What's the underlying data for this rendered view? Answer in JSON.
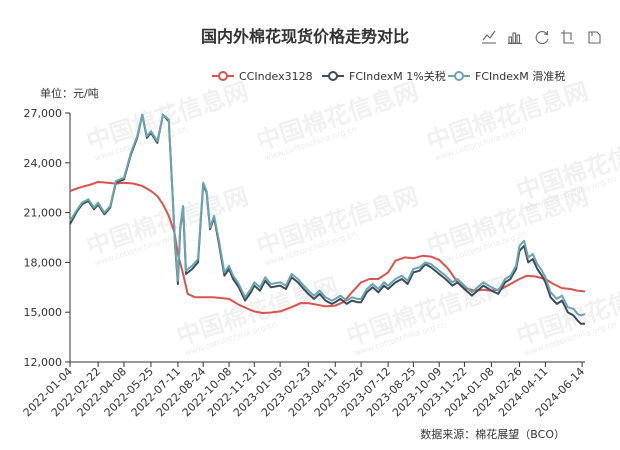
{
  "chart_data": {
    "type": "line",
    "title": "国内外棉花现货价格走势对比",
    "unit_label": "单位：元/吨",
    "source": "数据来源：棉花展望（BCO）",
    "watermark": "中国棉花信息网",
    "watermark_sub": "www.cottonchina.org.cn",
    "legend_position": "top-right",
    "grid": false,
    "y_axis": {
      "min": 12000,
      "max": 27000,
      "ticks": [
        12000,
        15000,
        18000,
        21000,
        24000,
        27000
      ],
      "tick_labels": [
        "12,000",
        "15,000",
        "18,000",
        "21,000",
        "24,000",
        "27,000"
      ]
    },
    "x_axis": {
      "start": "2022-01-04",
      "end": "2024-06-19",
      "tick_labels": [
        "2022-01-04",
        "2022-02-22",
        "2022-04-08",
        "2022-05-25",
        "2022-07-11",
        "2022-08-24",
        "2022-10-08",
        "2022-11-21",
        "2023-01-05",
        "2023-02-23",
        "2023-04-11",
        "2023-05-26",
        "2023-07-12",
        "2023-08-25",
        "2023-10-09",
        "2023-11-22",
        "2024-01-08",
        "2024-02-26",
        "2024-04-11",
        "2024-06-14"
      ]
    },
    "series": [
      {
        "name": "CCIndex3128",
        "color": "#d9534f",
        "points": [
          [
            "2022-01-04",
            22300
          ],
          [
            "2022-01-20",
            22500
          ],
          [
            "2022-02-10",
            22700
          ],
          [
            "2022-02-22",
            22850
          ],
          [
            "2022-03-10",
            22800
          ],
          [
            "2022-03-25",
            22750
          ],
          [
            "2022-04-08",
            22800
          ],
          [
            "2022-04-25",
            22750
          ],
          [
            "2022-05-10",
            22600
          ],
          [
            "2022-05-25",
            22300
          ],
          [
            "2022-06-05",
            22000
          ],
          [
            "2022-06-15",
            21500
          ],
          [
            "2022-06-25",
            20800
          ],
          [
            "2022-07-05",
            19800
          ],
          [
            "2022-07-11",
            18500
          ],
          [
            "2022-07-20",
            17300
          ],
          [
            "2022-07-28",
            16100
          ],
          [
            "2022-08-10",
            15900
          ],
          [
            "2022-08-24",
            15900
          ],
          [
            "2022-09-10",
            15900
          ],
          [
            "2022-09-25",
            15850
          ],
          [
            "2022-10-08",
            15800
          ],
          [
            "2022-10-25",
            15450
          ],
          [
            "2022-11-10",
            15200
          ],
          [
            "2022-11-21",
            15050
          ],
          [
            "2022-12-05",
            14950
          ],
          [
            "2022-12-20",
            14980
          ],
          [
            "2023-01-05",
            15050
          ],
          [
            "2023-01-25",
            15300
          ],
          [
            "2023-02-10",
            15550
          ],
          [
            "2023-02-23",
            15550
          ],
          [
            "2023-03-10",
            15450
          ],
          [
            "2023-03-25",
            15350
          ],
          [
            "2023-04-11",
            15400
          ],
          [
            "2023-04-25",
            15600
          ],
          [
            "2023-05-10",
            16200
          ],
          [
            "2023-05-26",
            16800
          ],
          [
            "2023-06-10",
            17000
          ],
          [
            "2023-06-25",
            17000
          ],
          [
            "2023-07-12",
            17400
          ],
          [
            "2023-07-25",
            18100
          ],
          [
            "2023-08-10",
            18300
          ],
          [
            "2023-08-25",
            18250
          ],
          [
            "2023-09-10",
            18400
          ],
          [
            "2023-09-25",
            18350
          ],
          [
            "2023-10-09",
            18150
          ],
          [
            "2023-10-25",
            17600
          ],
          [
            "2023-11-10",
            16800
          ],
          [
            "2023-11-22",
            16450
          ],
          [
            "2023-12-10",
            16300
          ],
          [
            "2023-12-25",
            16350
          ],
          [
            "2024-01-08",
            16300
          ],
          [
            "2024-01-25",
            16400
          ],
          [
            "2024-02-10",
            16700
          ],
          [
            "2024-02-26",
            17000
          ],
          [
            "2024-03-10",
            17200
          ],
          [
            "2024-03-25",
            17150
          ],
          [
            "2024-04-11",
            17000
          ],
          [
            "2024-04-25",
            16700
          ],
          [
            "2024-05-10",
            16450
          ],
          [
            "2024-05-25",
            16400
          ],
          [
            "2024-06-05",
            16300
          ],
          [
            "2024-06-19",
            16250
          ]
        ]
      },
      {
        "name": "FCIndexM 1%关税",
        "color": "#3f4b5a",
        "points": [
          [
            "2022-01-04",
            20300
          ],
          [
            "2022-01-15",
            21000
          ],
          [
            "2022-01-25",
            21500
          ],
          [
            "2022-02-05",
            21700
          ],
          [
            "2022-02-15",
            21200
          ],
          [
            "2022-02-22",
            21500
          ],
          [
            "2022-03-05",
            20900
          ],
          [
            "2022-03-15",
            21300
          ],
          [
            "2022-03-25",
            22800
          ],
          [
            "2022-04-08",
            23000
          ],
          [
            "2022-04-20",
            24500
          ],
          [
            "2022-05-01",
            25500
          ],
          [
            "2022-05-10",
            26900
          ],
          [
            "2022-05-18",
            25500
          ],
          [
            "2022-05-25",
            25800
          ],
          [
            "2022-06-05",
            25200
          ],
          [
            "2022-06-15",
            26900
          ],
          [
            "2022-06-25",
            26500
          ],
          [
            "2022-07-01",
            22500
          ],
          [
            "2022-07-06",
            19000
          ],
          [
            "2022-07-11",
            16700
          ],
          [
            "2022-07-15",
            20000
          ],
          [
            "2022-07-20",
            21300
          ],
          [
            "2022-07-25",
            17300
          ],
          [
            "2022-08-05",
            17600
          ],
          [
            "2022-08-15",
            18000
          ],
          [
            "2022-08-24",
            22700
          ],
          [
            "2022-08-30",
            22200
          ],
          [
            "2022-09-05",
            20000
          ],
          [
            "2022-09-12",
            20700
          ],
          [
            "2022-09-20",
            19200
          ],
          [
            "2022-09-30",
            17200
          ],
          [
            "2022-10-08",
            17600
          ],
          [
            "2022-10-15",
            17000
          ],
          [
            "2022-10-25",
            16500
          ],
          [
            "2022-11-05",
            15700
          ],
          [
            "2022-11-15",
            16200
          ],
          [
            "2022-11-21",
            16600
          ],
          [
            "2022-12-01",
            16300
          ],
          [
            "2022-12-10",
            16900
          ],
          [
            "2022-12-20",
            16500
          ],
          [
            "2023-01-05",
            16600
          ],
          [
            "2023-01-15",
            16400
          ],
          [
            "2023-01-25",
            17100
          ],
          [
            "2023-02-05",
            16800
          ],
          [
            "2023-02-15",
            16400
          ],
          [
            "2023-02-23",
            16100
          ],
          [
            "2023-03-05",
            15800
          ],
          [
            "2023-03-15",
            16100
          ],
          [
            "2023-03-25",
            15700
          ],
          [
            "2023-04-05",
            15500
          ],
          [
            "2023-04-11",
            15600
          ],
          [
            "2023-04-20",
            15800
          ],
          [
            "2023-05-01",
            15500
          ],
          [
            "2023-05-10",
            15700
          ],
          [
            "2023-05-20",
            15600
          ],
          [
            "2023-05-26",
            15600
          ],
          [
            "2023-06-05",
            16200
          ],
          [
            "2023-06-15",
            16500
          ],
          [
            "2023-06-25",
            16200
          ],
          [
            "2023-07-05",
            16600
          ],
          [
            "2023-07-12",
            16400
          ],
          [
            "2023-07-25",
            16800
          ],
          [
            "2023-08-05",
            17000
          ],
          [
            "2023-08-15",
            16700
          ],
          [
            "2023-08-25",
            17400
          ],
          [
            "2023-09-05",
            17500
          ],
          [
            "2023-09-15",
            17900
          ],
          [
            "2023-09-25",
            17700
          ],
          [
            "2023-10-09",
            17300
          ],
          [
            "2023-10-20",
            17000
          ],
          [
            "2023-11-01",
            16600
          ],
          [
            "2023-11-10",
            16800
          ],
          [
            "2023-11-22",
            16400
          ],
          [
            "2023-12-05",
            16000
          ],
          [
            "2023-12-15",
            16300
          ],
          [
            "2023-12-25",
            16600
          ],
          [
            "2024-01-08",
            16300
          ],
          [
            "2024-01-20",
            16100
          ],
          [
            "2024-02-01",
            16800
          ],
          [
            "2024-02-10",
            17000
          ],
          [
            "2024-02-20",
            17600
          ],
          [
            "2024-02-26",
            18700
          ],
          [
            "2024-03-05",
            19000
          ],
          [
            "2024-03-12",
            18000
          ],
          [
            "2024-03-20",
            18200
          ],
          [
            "2024-03-28",
            17600
          ],
          [
            "2024-04-05",
            17200
          ],
          [
            "2024-04-11",
            16800
          ],
          [
            "2024-04-20",
            15900
          ],
          [
            "2024-05-01",
            15500
          ],
          [
            "2024-05-10",
            15700
          ],
          [
            "2024-05-20",
            15000
          ],
          [
            "2024-05-30",
            14800
          ],
          [
            "2024-06-06",
            14500
          ],
          [
            "2024-06-12",
            14300
          ],
          [
            "2024-06-19",
            14300
          ]
        ]
      },
      {
        "name": "FCIndexM 滑准税",
        "color": "#6aa5b0",
        "points": [
          [
            "2022-01-04",
            20500
          ],
          [
            "2022-01-15",
            21100
          ],
          [
            "2022-01-25",
            21600
          ],
          [
            "2022-02-05",
            21800
          ],
          [
            "2022-02-15",
            21300
          ],
          [
            "2022-02-22",
            21600
          ],
          [
            "2022-03-05",
            21000
          ],
          [
            "2022-03-15",
            21400
          ],
          [
            "2022-03-25",
            22900
          ],
          [
            "2022-04-08",
            23100
          ],
          [
            "2022-04-20",
            24600
          ],
          [
            "2022-05-01",
            25600
          ],
          [
            "2022-05-10",
            26900
          ],
          [
            "2022-05-18",
            25600
          ],
          [
            "2022-05-25",
            25900
          ],
          [
            "2022-06-05",
            25300
          ],
          [
            "2022-06-15",
            26900
          ],
          [
            "2022-06-25",
            26600
          ],
          [
            "2022-07-01",
            22600
          ],
          [
            "2022-07-06",
            19100
          ],
          [
            "2022-07-11",
            16900
          ],
          [
            "2022-07-15",
            20100
          ],
          [
            "2022-07-20",
            21400
          ],
          [
            "2022-07-25",
            17500
          ],
          [
            "2022-08-05",
            17800
          ],
          [
            "2022-08-15",
            18200
          ],
          [
            "2022-08-24",
            22800
          ],
          [
            "2022-08-30",
            22300
          ],
          [
            "2022-09-05",
            20100
          ],
          [
            "2022-09-12",
            20800
          ],
          [
            "2022-09-20",
            19400
          ],
          [
            "2022-09-30",
            17400
          ],
          [
            "2022-10-08",
            17800
          ],
          [
            "2022-10-15",
            17200
          ],
          [
            "2022-10-25",
            16700
          ],
          [
            "2022-11-05",
            15900
          ],
          [
            "2022-11-15",
            16400
          ],
          [
            "2022-11-21",
            16800
          ],
          [
            "2022-12-01",
            16500
          ],
          [
            "2022-12-10",
            17100
          ],
          [
            "2022-12-20",
            16700
          ],
          [
            "2023-01-05",
            16800
          ],
          [
            "2023-01-15",
            16600
          ],
          [
            "2023-01-25",
            17300
          ],
          [
            "2023-02-05",
            17000
          ],
          [
            "2023-02-15",
            16600
          ],
          [
            "2023-02-23",
            16300
          ],
          [
            "2023-03-05",
            16000
          ],
          [
            "2023-03-15",
            16300
          ],
          [
            "2023-03-25",
            15900
          ],
          [
            "2023-04-05",
            15700
          ],
          [
            "2023-04-11",
            15800
          ],
          [
            "2023-04-20",
            16000
          ],
          [
            "2023-05-01",
            15700
          ],
          [
            "2023-05-10",
            15900
          ],
          [
            "2023-05-20",
            15800
          ],
          [
            "2023-05-26",
            15800
          ],
          [
            "2023-06-05",
            16400
          ],
          [
            "2023-06-15",
            16700
          ],
          [
            "2023-06-25",
            16400
          ],
          [
            "2023-07-05",
            16800
          ],
          [
            "2023-07-12",
            16600
          ],
          [
            "2023-07-25",
            17000
          ],
          [
            "2023-08-05",
            17200
          ],
          [
            "2023-08-15",
            16900
          ],
          [
            "2023-08-25",
            17600
          ],
          [
            "2023-09-05",
            17700
          ],
          [
            "2023-09-15",
            18000
          ],
          [
            "2023-09-25",
            17900
          ],
          [
            "2023-10-09",
            17500
          ],
          [
            "2023-10-20",
            17200
          ],
          [
            "2023-11-01",
            16800
          ],
          [
            "2023-11-10",
            17000
          ],
          [
            "2023-11-22",
            16600
          ],
          [
            "2023-12-05",
            16200
          ],
          [
            "2023-12-15",
            16500
          ],
          [
            "2023-12-25",
            16800
          ],
          [
            "2024-01-08",
            16500
          ],
          [
            "2024-01-20",
            16300
          ],
          [
            "2024-02-01",
            17000
          ],
          [
            "2024-02-10",
            17200
          ],
          [
            "2024-02-20",
            17800
          ],
          [
            "2024-02-26",
            19000
          ],
          [
            "2024-03-05",
            19300
          ],
          [
            "2024-03-12",
            18300
          ],
          [
            "2024-03-20",
            18500
          ],
          [
            "2024-03-28",
            17900
          ],
          [
            "2024-04-05",
            17500
          ],
          [
            "2024-04-11",
            17100
          ],
          [
            "2024-04-20",
            16200
          ],
          [
            "2024-05-01",
            15800
          ],
          [
            "2024-05-10",
            16000
          ],
          [
            "2024-05-20",
            15300
          ],
          [
            "2024-05-30",
            15200
          ],
          [
            "2024-06-06",
            14900
          ],
          [
            "2024-06-12",
            14800
          ],
          [
            "2024-06-19",
            14900
          ]
        ]
      }
    ]
  },
  "toolbox": {
    "icons": [
      "line-chart-icon",
      "bar-chart-icon",
      "restore-icon",
      "data-view-icon",
      "save-image-icon"
    ]
  }
}
